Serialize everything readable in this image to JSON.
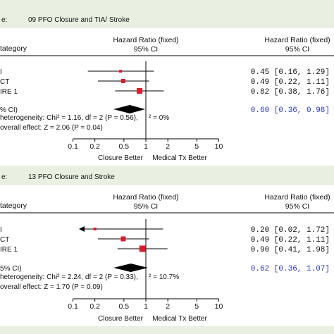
{
  "colors": {
    "background": "#e9f0e1",
    "panel": "#ffffff",
    "marker": "#d81e2c",
    "pooled_text": "#2a36c8",
    "line": "#000000"
  },
  "chart_data": [
    {
      "type": "forest",
      "comparison_label": "e:",
      "comparison": "09 PFO Closure and TIA/ Stroke",
      "col_category": "tategory",
      "col_hr_left_1": "Hazard Ratio (fixed)",
      "col_hr_left_2": "95% CI",
      "col_hr_right_1": "Hazard Ratio (fixed)",
      "col_hr_right_2": "95% CI",
      "studies": [
        {
          "label": "I",
          "hr": 0.45,
          "ci": [
            0.16,
            1.29
          ],
          "text": "0.45 [0.16, 1.29]",
          "arrow_left": false
        },
        {
          "label": "CT",
          "hr": 0.49,
          "ci": [
            0.22,
            1.11
          ],
          "text": "0.49 [0.22, 1.11]",
          "arrow_left": false
        },
        {
          "label": "IRE 1",
          "hr": 0.82,
          "ci": [
            0.38,
            1.76
          ],
          "text": "0.82 [0.38, 1.76]",
          "arrow_left": false
        }
      ],
      "pooled": {
        "label": "% CI)",
        "hr": 0.6,
        "ci": [
          0.36,
          0.98
        ],
        "text": "0.60 [0.36, 0.98]"
      },
      "heterogeneity_prefix": "heterogeneity: Chi² = 1.16, df = 2 (P = 0.56),",
      "heterogeneity_suffix": "² = 0%",
      "overall": "overall effect: Z = 2.06 (P = 0.04)",
      "xaxis": {
        "scale": "log",
        "ticks": [
          0.1,
          0.2,
          0.5,
          1,
          2,
          5,
          10
        ],
        "tick_labels": [
          "0.1",
          "0.2",
          "0.5",
          "1",
          "2",
          "5",
          "10"
        ]
      },
      "favours_left": "Closure Better",
      "favours_right": "Medical Tx Better"
    },
    {
      "type": "forest",
      "comparison_label": "e:",
      "comparison": "13 PFO Closure and Stroke",
      "col_category": "tategory",
      "col_hr_left_1": "Hazard Ratio (fixed)",
      "col_hr_left_2": "95% CI",
      "col_hr_right_1": "Hazard Ratio (fixed)",
      "col_hr_right_2": "95% CI",
      "studies": [
        {
          "label": "I",
          "hr": 0.2,
          "ci": [
            0.02,
            1.72
          ],
          "text": "0.20 [0.02, 1.72]",
          "arrow_left": true
        },
        {
          "label": "CT",
          "hr": 0.49,
          "ci": [
            0.22,
            1.11
          ],
          "text": "0.49 [0.22, 1.11]",
          "arrow_left": false
        },
        {
          "label": "IRE 1",
          "hr": 0.9,
          "ci": [
            0.41,
            1.98
          ],
          "text": "0.90 [0.41, 1.98]",
          "arrow_left": false
        }
      ],
      "pooled": {
        "label": "5% CI)",
        "hr": 0.62,
        "ci": [
          0.36,
          1.07
        ],
        "text": "0.62 [0.36, 1.07]"
      },
      "heterogeneity_prefix": "heterogeneity: Chi² = 2.24, df = 2 (P = 0.33),",
      "heterogeneity_suffix": "² = 10.7%",
      "overall": "overall effect: Z = 1.70 (P = 0.09)",
      "xaxis": {
        "scale": "log",
        "ticks": [
          0.1,
          0.2,
          0.5,
          1,
          2,
          5,
          10
        ],
        "tick_labels": [
          "0.1",
          "0.2",
          "0.5",
          "1",
          "2",
          "5",
          "10"
        ]
      },
      "favours_left": "Closure Better",
      "favours_right": "Medical Tx Better"
    }
  ]
}
